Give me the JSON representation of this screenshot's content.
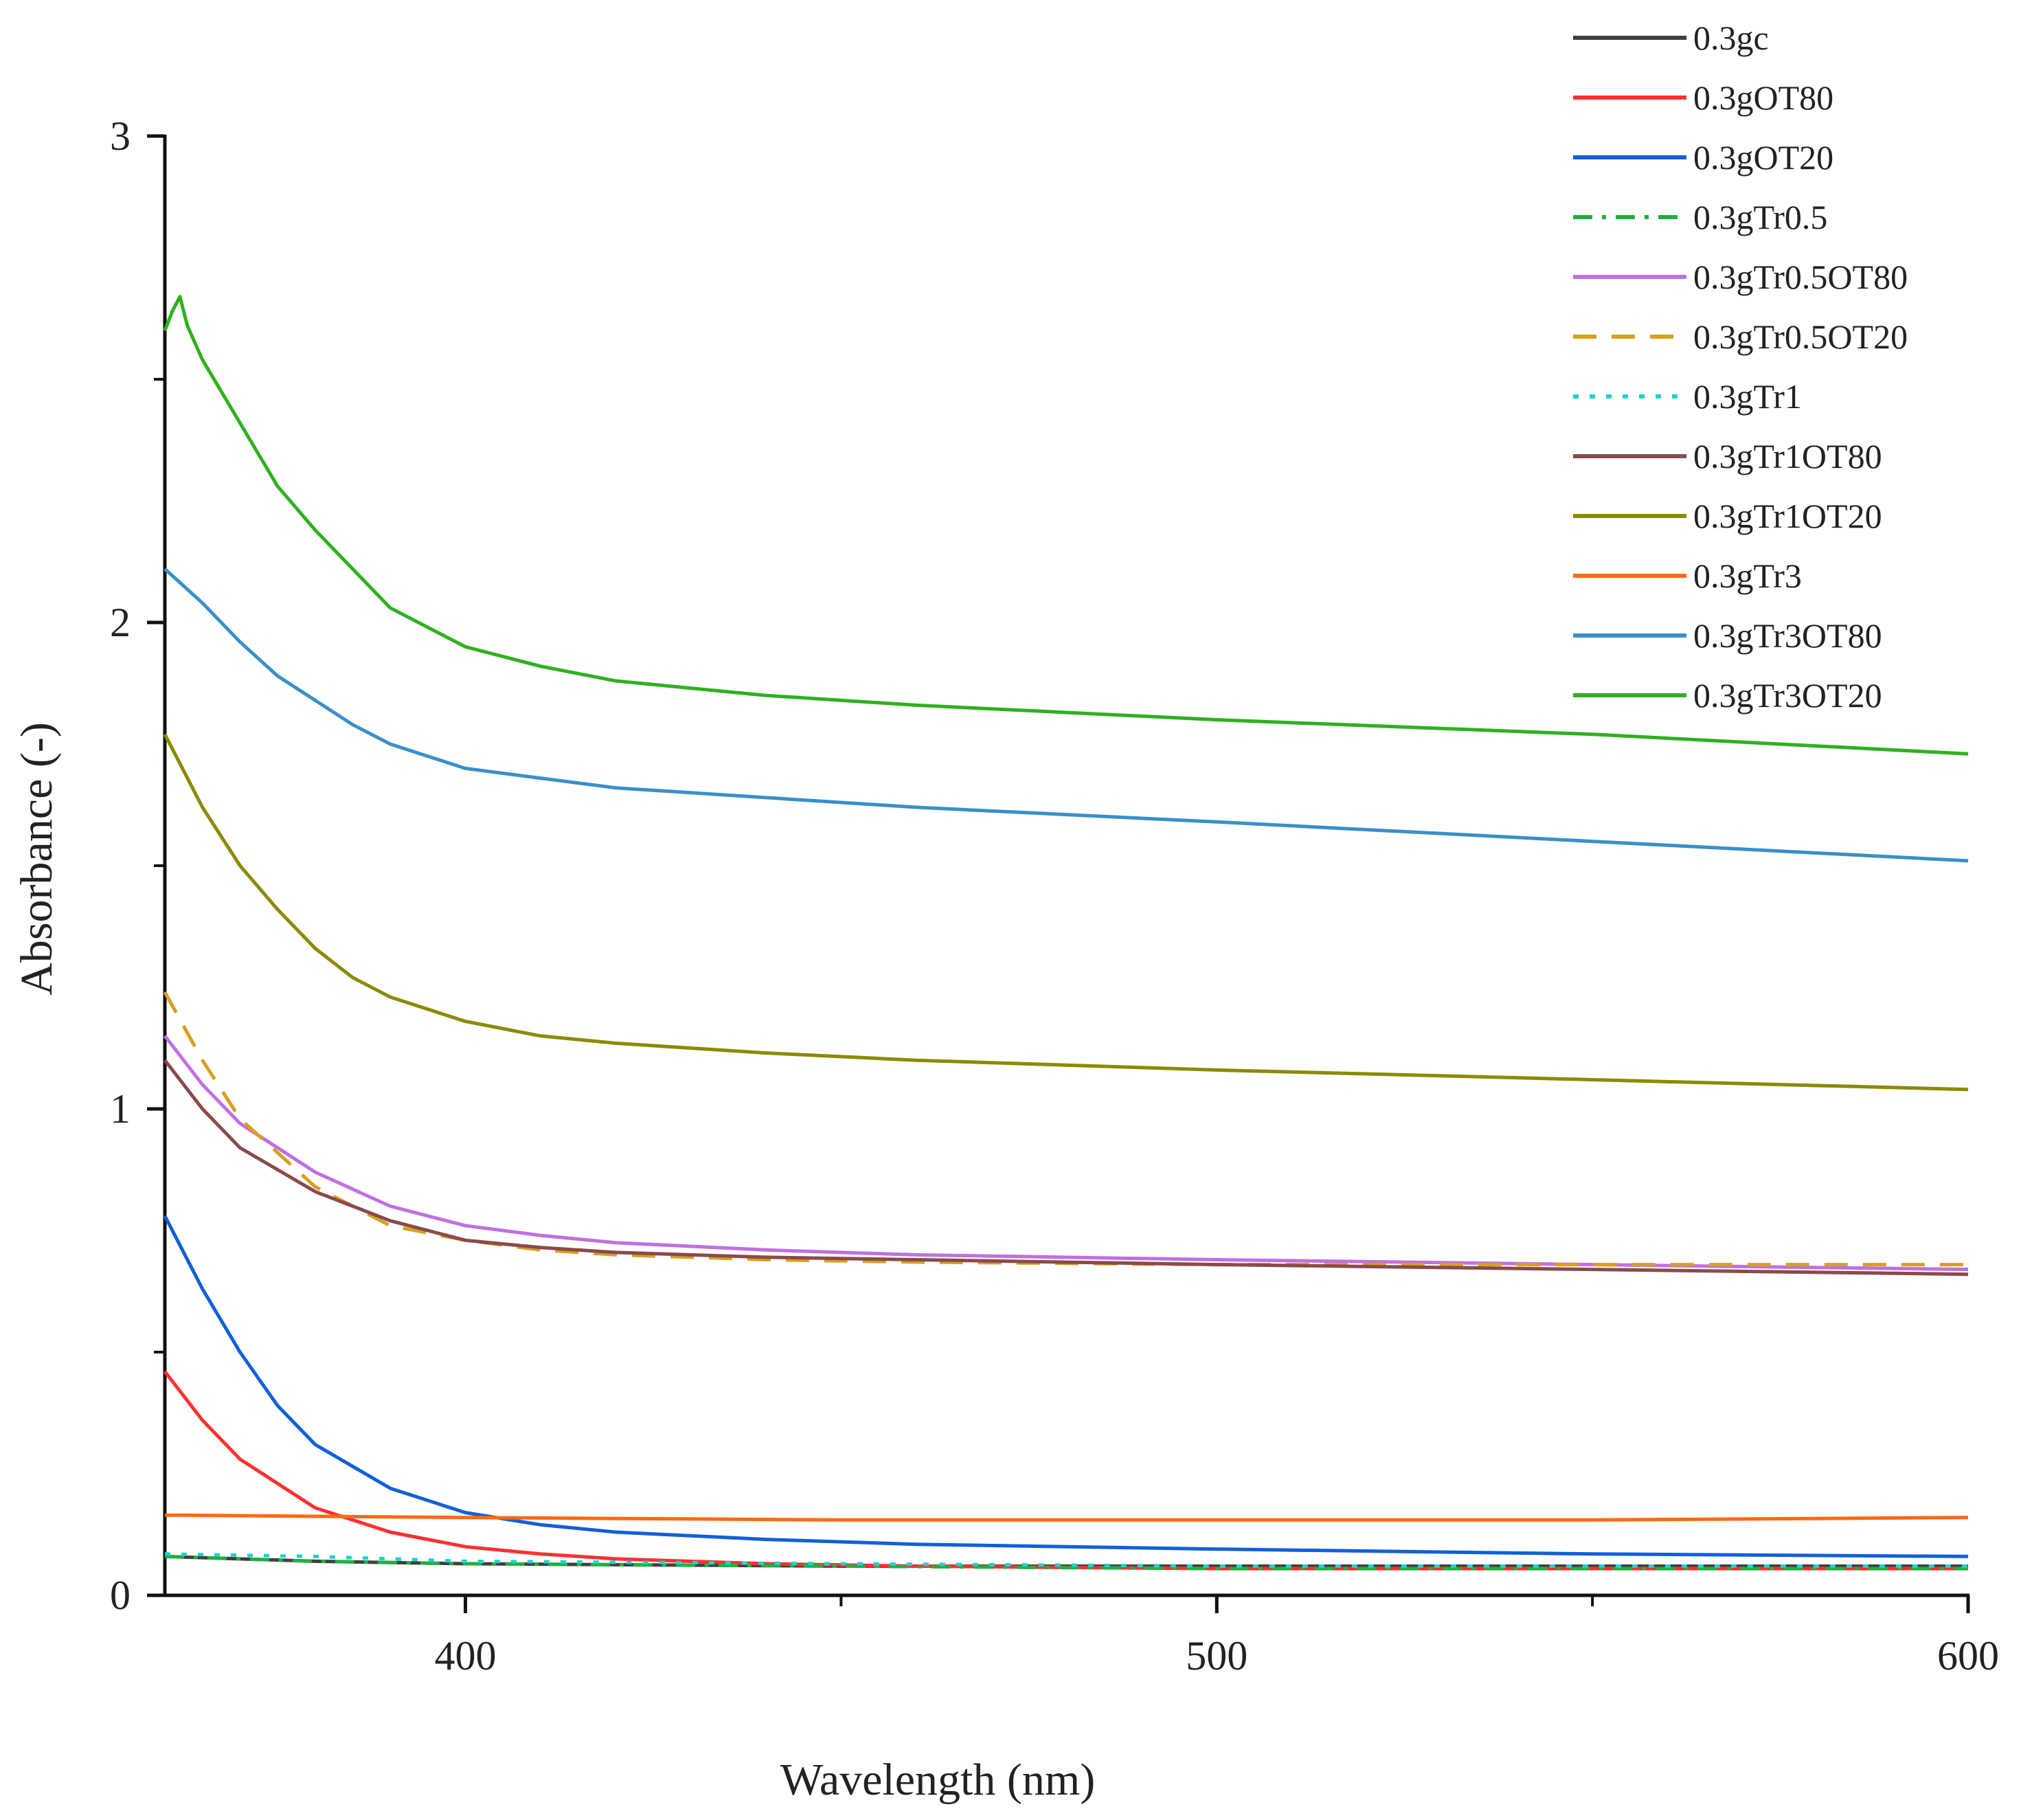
{
  "chart_data": {
    "type": "line",
    "xlabel": "Wavelength (nm)",
    "ylabel": "Absorbance (-)",
    "xlim": [
      360,
      600
    ],
    "ylim": [
      0,
      3
    ],
    "x_ticks": [
      400,
      500,
      600
    ],
    "x_tick_labels": [
      "400",
      "500",
      "600"
    ],
    "x_minor_ticks": [
      450,
      550
    ],
    "y_ticks": [
      0,
      1,
      2,
      3
    ],
    "y_tick_labels": [
      "0",
      "1",
      "2",
      "3"
    ],
    "y_minor_ticks": [
      0.5,
      1.5,
      2.5
    ],
    "grid": false,
    "legend_position": "top-right",
    "series": [
      {
        "name": "0.3gc",
        "color": "#404040",
        "dash": "solid",
        "x": [
          360,
          380,
          400,
          450,
          500,
          550,
          600
        ],
        "y": [
          0.08,
          0.07,
          0.065,
          0.06,
          0.06,
          0.06,
          0.06
        ]
      },
      {
        "name": "0.3gOT80",
        "color": "#ff3030",
        "dash": "solid",
        "x": [
          360,
          365,
          370,
          380,
          390,
          400,
          410,
          420,
          440,
          460,
          500,
          550,
          600
        ],
        "y": [
          0.46,
          0.36,
          0.28,
          0.18,
          0.13,
          0.1,
          0.085,
          0.075,
          0.065,
          0.06,
          0.055,
          0.055,
          0.055
        ]
      },
      {
        "name": "0.3gOT20",
        "color": "#1060d8",
        "dash": "solid",
        "x": [
          360,
          365,
          370,
          375,
          380,
          390,
          400,
          410,
          420,
          440,
          460,
          500,
          550,
          600
        ],
        "y": [
          0.78,
          0.63,
          0.5,
          0.39,
          0.31,
          0.22,
          0.17,
          0.145,
          0.13,
          0.115,
          0.105,
          0.095,
          0.085,
          0.08
        ]
      },
      {
        "name": "0.3gTr0.5",
        "color": "#20b040",
        "dash": "dashdot",
        "x": [
          360,
          380,
          400,
          450,
          500,
          550,
          600
        ],
        "y": [
          0.08,
          0.07,
          0.065,
          0.06,
          0.055,
          0.055,
          0.055
        ]
      },
      {
        "name": "0.3gTr0.5OT80",
        "color": "#c070e0",
        "dash": "solid",
        "x": [
          360,
          365,
          370,
          380,
          390,
          400,
          410,
          420,
          440,
          460,
          500,
          550,
          600
        ],
        "y": [
          1.15,
          1.05,
          0.97,
          0.87,
          0.8,
          0.76,
          0.74,
          0.725,
          0.71,
          0.7,
          0.69,
          0.68,
          0.67
        ]
      },
      {
        "name": "0.3gTr0.5OT20",
        "color": "#d8a020",
        "dash": "dash",
        "x": [
          360,
          365,
          370,
          380,
          390,
          400,
          410,
          420,
          440,
          460,
          500,
          550,
          600
        ],
        "y": [
          1.24,
          1.1,
          0.98,
          0.84,
          0.76,
          0.73,
          0.71,
          0.7,
          0.69,
          0.685,
          0.68,
          0.68,
          0.68
        ]
      },
      {
        "name": "0.3gTr1",
        "color": "#20d0d0",
        "dash": "dot",
        "x": [
          360,
          380,
          400,
          450,
          500,
          550,
          600
        ],
        "y": [
          0.085,
          0.08,
          0.07,
          0.065,
          0.06,
          0.06,
          0.06
        ]
      },
      {
        "name": "0.3gTr1OT80",
        "color": "#8b4a4a",
        "dash": "solid",
        "x": [
          360,
          365,
          370,
          380,
          390,
          400,
          410,
          420,
          440,
          460,
          500,
          550,
          600
        ],
        "y": [
          1.1,
          1.0,
          0.92,
          0.83,
          0.77,
          0.73,
          0.715,
          0.705,
          0.695,
          0.69,
          0.68,
          0.67,
          0.66
        ]
      },
      {
        "name": "0.3gTr1OT20",
        "color": "#8b8a00",
        "dash": "solid",
        "x": [
          360,
          365,
          370,
          375,
          380,
          385,
          390,
          400,
          410,
          420,
          440,
          460,
          500,
          550,
          600
        ],
        "y": [
          1.77,
          1.62,
          1.5,
          1.41,
          1.33,
          1.27,
          1.23,
          1.18,
          1.15,
          1.135,
          1.115,
          1.1,
          1.08,
          1.06,
          1.04
        ]
      },
      {
        "name": "0.3gTr3",
        "color": "#ff6a10",
        "dash": "solid",
        "x": [
          360,
          400,
          450,
          500,
          550,
          600
        ],
        "y": [
          0.165,
          0.16,
          0.155,
          0.155,
          0.155,
          0.16
        ]
      },
      {
        "name": "0.3gTr3OT80",
        "color": "#3a90c8",
        "dash": "solid",
        "x": [
          360,
          365,
          370,
          375,
          380,
          385,
          390,
          400,
          410,
          420,
          440,
          460,
          500,
          550,
          600
        ],
        "y": [
          2.11,
          2.04,
          1.96,
          1.89,
          1.84,
          1.79,
          1.75,
          1.7,
          1.68,
          1.66,
          1.64,
          1.62,
          1.59,
          1.55,
          1.51
        ]
      },
      {
        "name": "0.3gTr3OT20",
        "color": "#30b020",
        "dash": "solid",
        "x": [
          360,
          361,
          362,
          363,
          365,
          370,
          375,
          380,
          385,
          390,
          400,
          410,
          420,
          440,
          460,
          500,
          550,
          600
        ],
        "y": [
          2.6,
          2.64,
          2.67,
          2.61,
          2.54,
          2.41,
          2.28,
          2.19,
          2.11,
          2.03,
          1.95,
          1.91,
          1.88,
          1.85,
          1.83,
          1.8,
          1.77,
          1.73
        ]
      }
    ]
  }
}
